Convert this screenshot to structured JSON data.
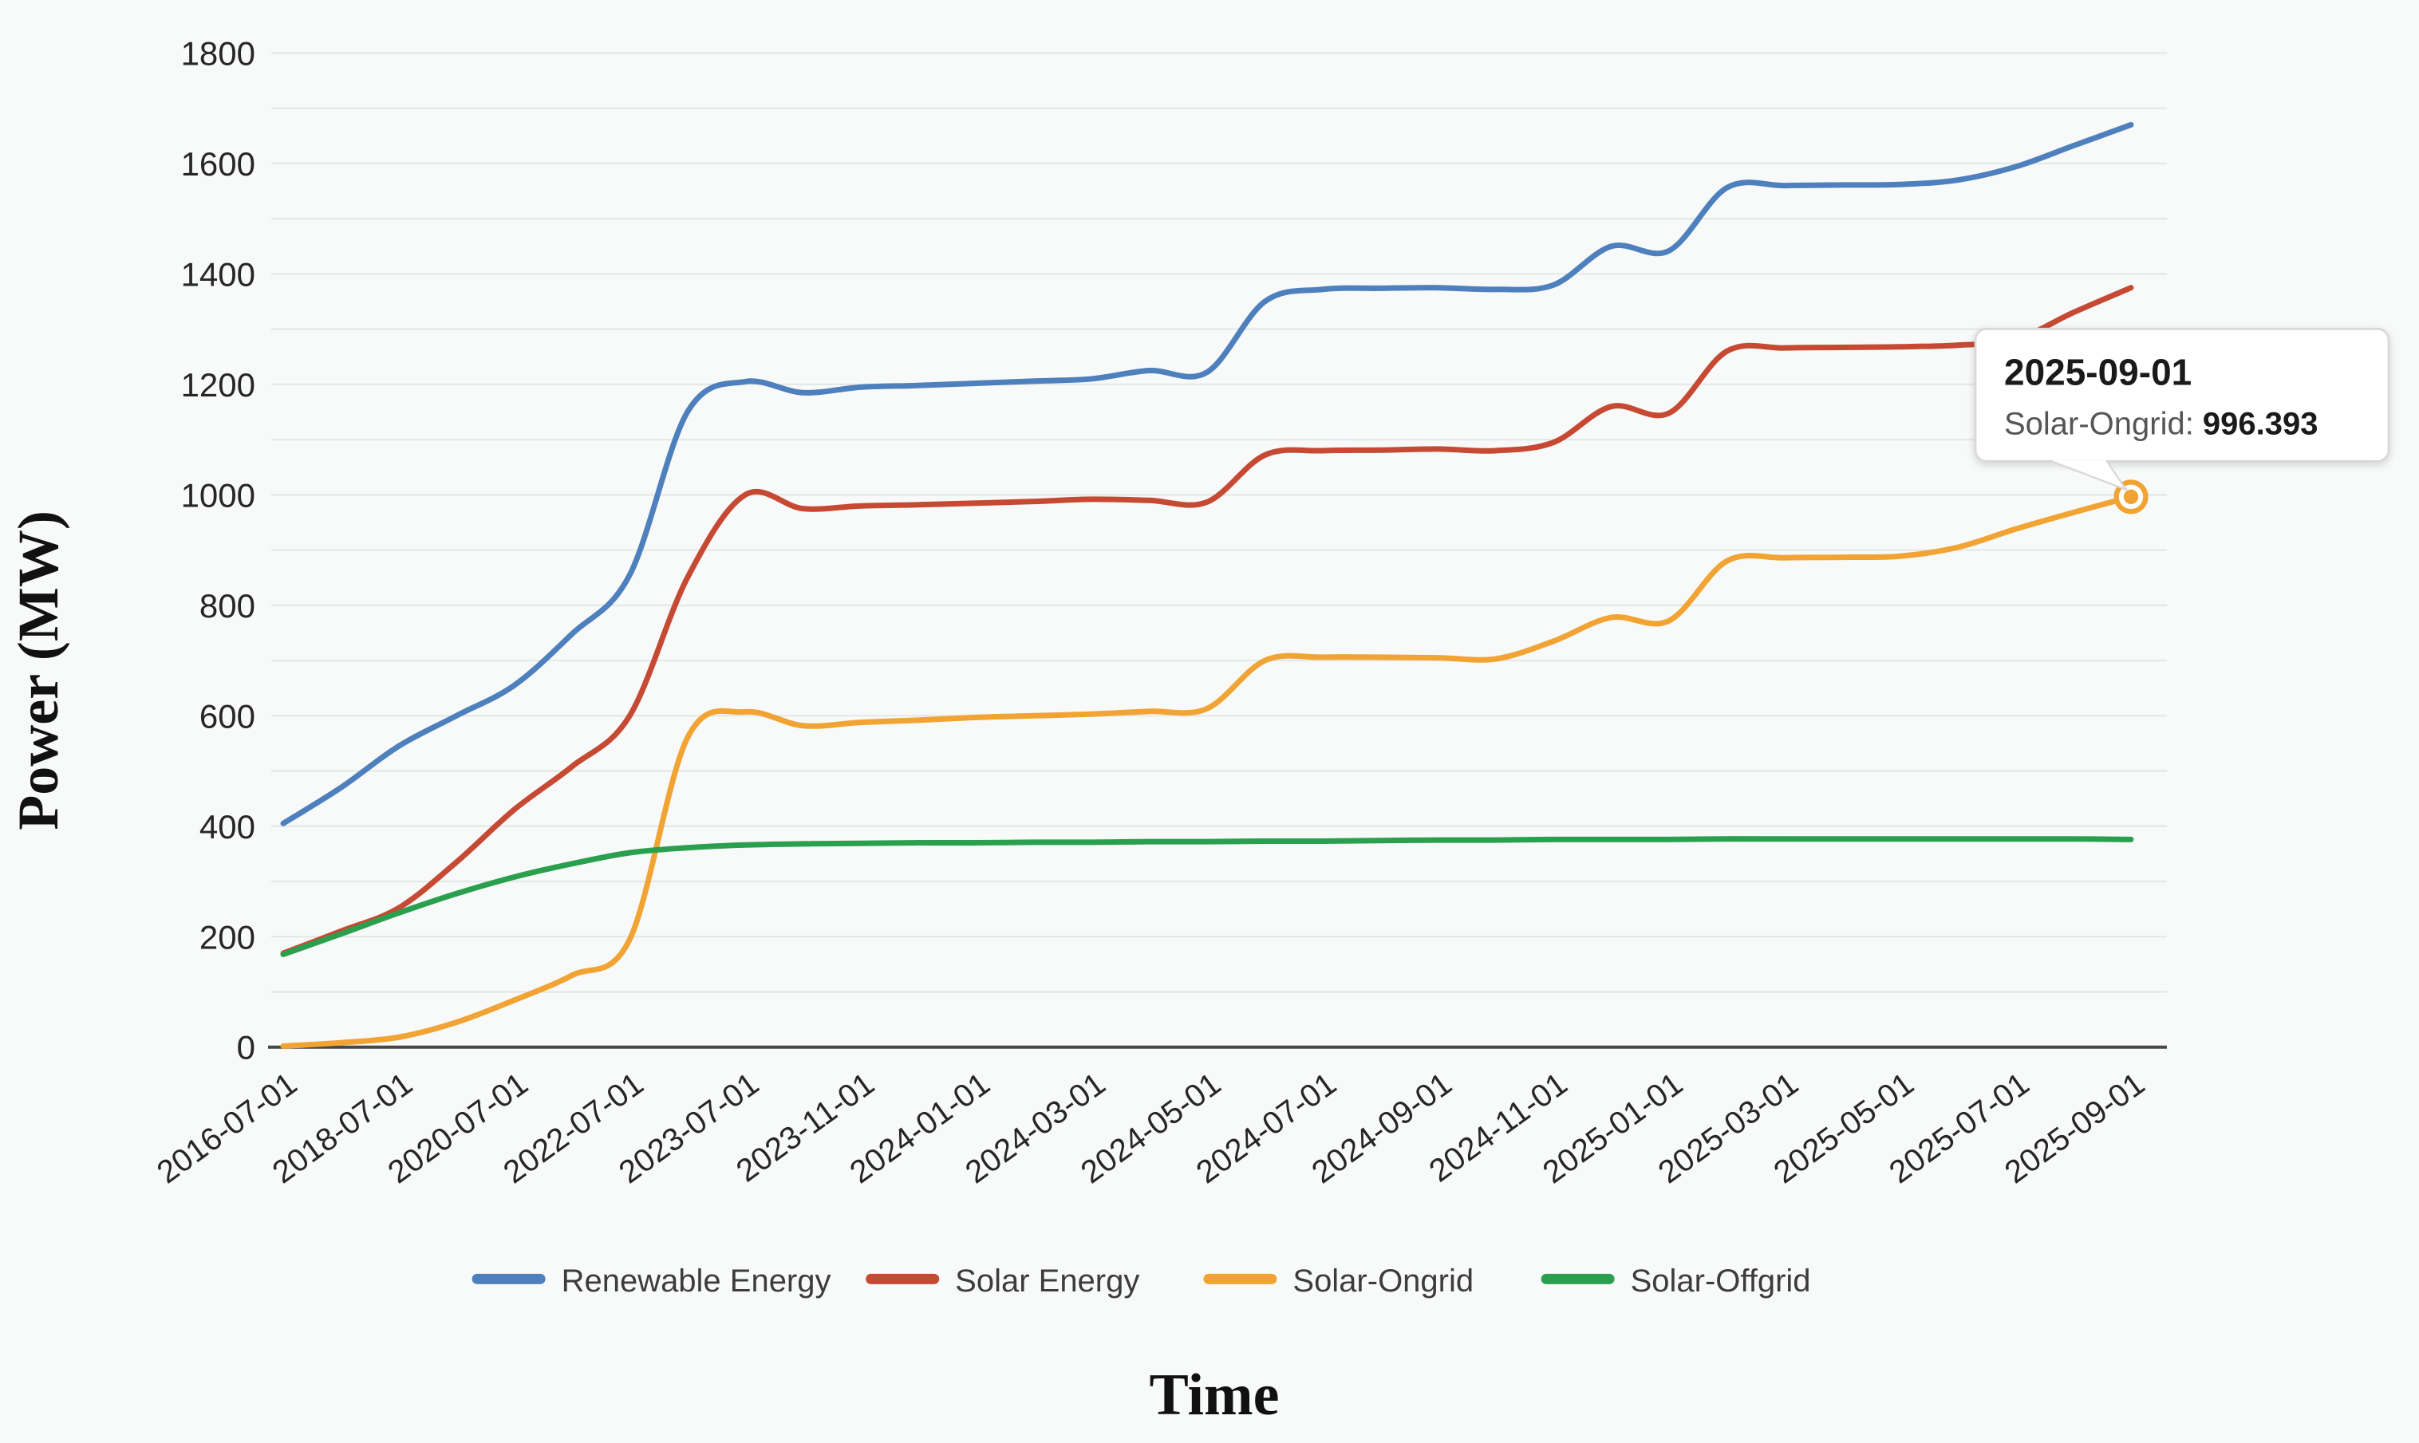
{
  "chart": {
    "background": "#f8faf9",
    "y_axis": {
      "title": "Power (MW)",
      "min": 0,
      "max": 1800,
      "label_step": 200,
      "grid_step": 100,
      "labels": [
        "0",
        "200",
        "400",
        "600",
        "800",
        "1000",
        "1200",
        "1400",
        "1600",
        "1800"
      ]
    },
    "x_axis": {
      "title": "Time"
    },
    "legend": [
      {
        "label": "Renewable Energy",
        "color": "#4e80bd"
      },
      {
        "label": "Solar Energy",
        "color": "#c64a33"
      },
      {
        "label": "Solar-Ongrid",
        "color": "#f1a433"
      },
      {
        "label": "Solar-Offgrid",
        "color": "#2aa04e"
      }
    ],
    "tooltip": {
      "date": "2025-09-01",
      "series_label": "Solar-Ongrid: ",
      "value": "996.393"
    },
    "style": {
      "grid_color": "#e4e8e6",
      "zero_axis_color": "#474747",
      "tick_text_color": "#262626",
      "legend_text_color": "#3c3c3c",
      "tooltip_border": "#d8d8d8",
      "tooltip_title_color": "#1a1a1a",
      "tooltip_label_color": "#555555",
      "marker_color": "#f1a433"
    }
  },
  "chart_data": {
    "type": "line",
    "title": "",
    "xlabel": "Time",
    "ylabel": "Power (MW)",
    "ylim": [
      0,
      1800
    ],
    "grid": true,
    "legend_position": "bottom",
    "categories": [
      "2016-07-01",
      "2018-07-01",
      "2020-07-01",
      "2022-07-01",
      "2023-07-01",
      "2023-11-01",
      "2024-01-01",
      "2024-03-01",
      "2024-05-01",
      "2024-07-01",
      "2024-09-01",
      "2024-11-01",
      "2025-01-01",
      "2025-03-01",
      "2025-05-01",
      "2025-07-01",
      "2025-09-01"
    ],
    "x_step": 0.5,
    "series": [
      {
        "name": "Renewable Energy",
        "color": "#4e80bd",
        "values": [
          405,
          470,
          545,
          600,
          655,
          748,
          855,
          1150,
          1205,
          1185,
          1195,
          1198,
          1202,
          1206,
          1210,
          1225,
          1222,
          1350,
          1372,
          1374,
          1375,
          1372,
          1380,
          1450,
          1442,
          1556,
          1560,
          1561,
          1562,
          1570,
          1594,
          1632,
          1670
        ]
      },
      {
        "name": "Solar Energy",
        "color": "#c64a33",
        "values": [
          170,
          210,
          252,
          335,
          430,
          508,
          600,
          850,
          1000,
          975,
          980,
          982,
          985,
          988,
          992,
          990,
          987,
          1072,
          1080,
          1081,
          1083,
          1080,
          1095,
          1160,
          1148,
          1260,
          1266,
          1267,
          1268,
          1271,
          1281,
          1330,
          1375
        ]
      },
      {
        "name": "Solar-Ongrid",
        "color": "#f1a433",
        "values": [
          2,
          8,
          18,
          45,
          85,
          130,
          195,
          560,
          607,
          582,
          588,
          592,
          597,
          600,
          603,
          608,
          613,
          700,
          706,
          706,
          705,
          703,
          735,
          778,
          772,
          880,
          886,
          887,
          889,
          905,
          938,
          968,
          996.393
        ]
      },
      {
        "name": "Solar-Offgrid",
        "color": "#2aa04e",
        "values": [
          168,
          205,
          243,
          278,
          308,
          332,
          352,
          361,
          366,
          368,
          369,
          370,
          370,
          371,
          371,
          372,
          372,
          373,
          373,
          374,
          375,
          375,
          376,
          376,
          376,
          377,
          377,
          377,
          377,
          377,
          377,
          377,
          376
        ]
      }
    ],
    "highlight": {
      "category": "2025-09-01",
      "series": "Solar-Ongrid",
      "value": 996.393
    }
  }
}
